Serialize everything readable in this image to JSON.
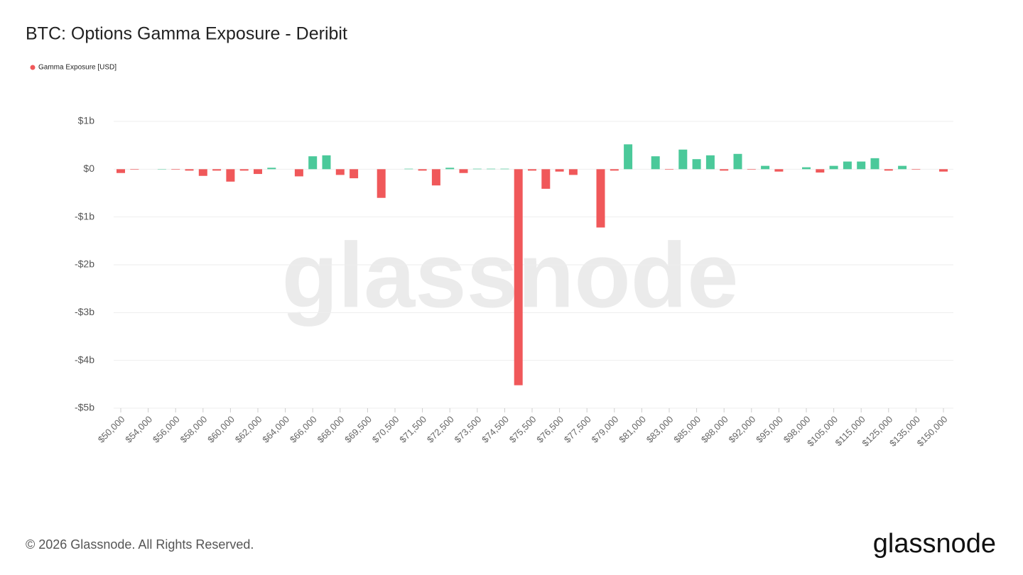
{
  "chart_data": {
    "type": "bar",
    "title": "BTC: Options Gamma Exposure - Deribit",
    "categories": [
      "$50,000",
      null,
      "$54,000",
      null,
      "$56,000",
      null,
      "$58,000",
      null,
      "$60,000",
      null,
      "$62,000",
      null,
      "$64,000",
      null,
      "$66,000",
      null,
      "$68,000",
      null,
      "$69,500",
      null,
      "$70,500",
      null,
      "$71,500",
      null,
      "$72,500",
      null,
      "$73,500",
      null,
      "$74,500",
      null,
      "$75,500",
      null,
      "$76,500",
      null,
      "$77,500",
      null,
      "$79,000",
      null,
      "$81,000",
      null,
      "$83,000",
      null,
      "$85,000",
      null,
      "$88,000",
      null,
      "$92,000",
      null,
      "$95,000",
      null,
      "$98,000",
      null,
      "$105,000",
      null,
      "$115,000",
      null,
      "$125,000",
      null,
      "$135,000",
      null,
      "$150,000"
    ],
    "series": [
      {
        "name": "Gamma Exposure [USD]",
        "color": "#f0585a",
        "positive_color": "#4bc99a",
        "values": [
          -80000000,
          -10000000,
          null,
          5000000,
          -10000000,
          -30000000,
          -140000000,
          -30000000,
          -260000000,
          -30000000,
          -100000000,
          30000000,
          null,
          -150000000,
          270000000,
          290000000,
          -120000000,
          -190000000,
          null,
          -600000000,
          null,
          10000000,
          -30000000,
          -340000000,
          30000000,
          -80000000,
          10000000,
          10000000,
          10000000,
          -4520000000,
          -30000000,
          -410000000,
          -50000000,
          -120000000,
          null,
          -1220000000,
          -30000000,
          520000000,
          null,
          270000000,
          -10000000,
          410000000,
          210000000,
          290000000,
          -30000000,
          320000000,
          -10000000,
          70000000,
          -50000000,
          null,
          40000000,
          -70000000,
          70000000,
          160000000,
          160000000,
          230000000,
          -30000000,
          70000000,
          -10000000,
          null,
          -50000000
        ]
      }
    ],
    "ylim": [
      -5000000000,
      1000000000
    ],
    "yticks": [
      {
        "value": 1000000000,
        "label": "$1b"
      },
      {
        "value": 0,
        "label": "$0"
      },
      {
        "value": -1000000000,
        "label": "-$1b"
      },
      {
        "value": -2000000000,
        "label": "-$2b"
      },
      {
        "value": -3000000000,
        "label": "-$3b"
      },
      {
        "value": -4000000000,
        "label": "-$4b"
      },
      {
        "value": -5000000000,
        "label": "-$5b"
      }
    ],
    "grid": true
  },
  "watermark": "glassnode",
  "footer": {
    "copyright": "© 2026 Glassnode. All Rights Reserved.",
    "logo": "glassnode"
  }
}
